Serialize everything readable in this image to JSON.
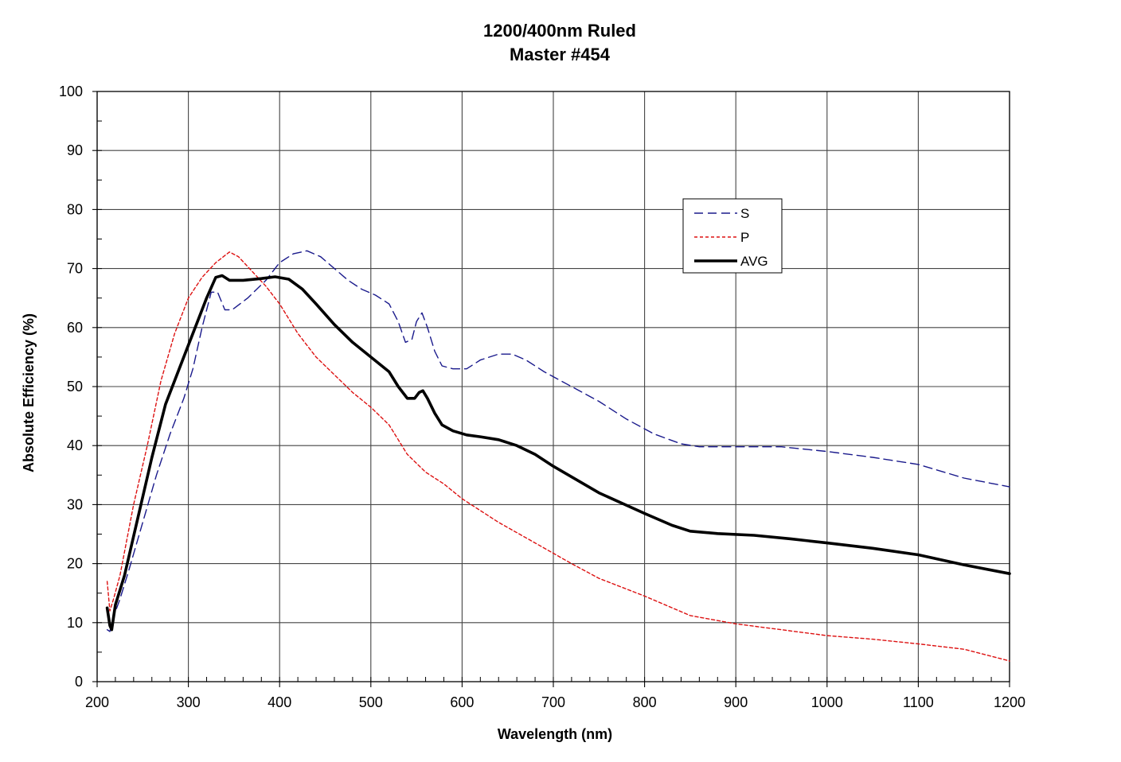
{
  "chart_data": {
    "type": "line",
    "title": [
      "1200/400nm Ruled",
      "Master #454"
    ],
    "xlabel": "Wavelength (nm)",
    "ylabel": "Absolute Efficiency (%)",
    "xlim": [
      200,
      1200
    ],
    "ylim": [
      0,
      100
    ],
    "xticks": [
      "200",
      "300",
      "400",
      "500",
      "600",
      "700",
      "800",
      "900",
      "1000",
      "1100",
      "1200"
    ],
    "yticks": [
      "0",
      "10",
      "20",
      "30",
      "40",
      "50",
      "60",
      "70",
      "80",
      "90",
      "100"
    ],
    "grid": true,
    "legend_position": "upper-right",
    "series": [
      {
        "name": "S",
        "color": "#1a1a8c",
        "style": "dashed",
        "points": [
          [
            211,
            8.8
          ],
          [
            214,
            8.5
          ],
          [
            218,
            11
          ],
          [
            225,
            14
          ],
          [
            235,
            19
          ],
          [
            250,
            27
          ],
          [
            265,
            35
          ],
          [
            280,
            42
          ],
          [
            295,
            48
          ],
          [
            305,
            53
          ],
          [
            315,
            60
          ],
          [
            325,
            66
          ],
          [
            332,
            66
          ],
          [
            340,
            63
          ],
          [
            348,
            63
          ],
          [
            365,
            65
          ],
          [
            385,
            68
          ],
          [
            400,
            71
          ],
          [
            415,
            72.5
          ],
          [
            430,
            73
          ],
          [
            445,
            72
          ],
          [
            460,
            70
          ],
          [
            475,
            68
          ],
          [
            490,
            66.5
          ],
          [
            505,
            65.5
          ],
          [
            520,
            64
          ],
          [
            530,
            61
          ],
          [
            538,
            57.5
          ],
          [
            545,
            58
          ],
          [
            550,
            61
          ],
          [
            556,
            62.5
          ],
          [
            562,
            60
          ],
          [
            570,
            56
          ],
          [
            578,
            53.5
          ],
          [
            590,
            53
          ],
          [
            605,
            53
          ],
          [
            620,
            54.5
          ],
          [
            640,
            55.5
          ],
          [
            655,
            55.5
          ],
          [
            670,
            54.5
          ],
          [
            690,
            52.5
          ],
          [
            720,
            50
          ],
          [
            750,
            47.5
          ],
          [
            780,
            44.5
          ],
          [
            810,
            42
          ],
          [
            840,
            40.3
          ],
          [
            860,
            39.8
          ],
          [
            900,
            39.8
          ],
          [
            950,
            39.8
          ],
          [
            1000,
            39
          ],
          [
            1050,
            38
          ],
          [
            1100,
            36.8
          ],
          [
            1150,
            34.5
          ],
          [
            1200,
            33
          ]
        ]
      },
      {
        "name": "P",
        "color": "#dd1111",
        "style": "dotted",
        "points": [
          [
            211,
            17
          ],
          [
            214,
            12
          ],
          [
            218,
            14
          ],
          [
            225,
            18
          ],
          [
            240,
            30
          ],
          [
            255,
            40
          ],
          [
            270,
            51
          ],
          [
            285,
            59
          ],
          [
            300,
            65
          ],
          [
            315,
            68.5
          ],
          [
            330,
            71
          ],
          [
            345,
            72.8
          ],
          [
            355,
            72
          ],
          [
            370,
            69.5
          ],
          [
            385,
            67
          ],
          [
            400,
            64
          ],
          [
            420,
            59
          ],
          [
            440,
            55
          ],
          [
            460,
            52
          ],
          [
            480,
            49
          ],
          [
            500,
            46.5
          ],
          [
            520,
            43.5
          ],
          [
            540,
            38.5
          ],
          [
            560,
            35.5
          ],
          [
            580,
            33.5
          ],
          [
            600,
            31
          ],
          [
            640,
            27
          ],
          [
            680,
            23.5
          ],
          [
            720,
            20
          ],
          [
            750,
            17.5
          ],
          [
            800,
            14.5
          ],
          [
            850,
            11.2
          ],
          [
            900,
            9.8
          ],
          [
            950,
            8.8
          ],
          [
            1000,
            7.8
          ],
          [
            1050,
            7.2
          ],
          [
            1100,
            6.4
          ],
          [
            1150,
            5.5
          ],
          [
            1200,
            3.5
          ]
        ]
      },
      {
        "name": "AVG",
        "color": "#000000",
        "style": "solid",
        "points": [
          [
            211,
            12.5
          ],
          [
            214,
            9.5
          ],
          [
            216,
            8.8
          ],
          [
            220,
            13
          ],
          [
            230,
            18
          ],
          [
            245,
            28
          ],
          [
            260,
            38
          ],
          [
            275,
            47
          ],
          [
            290,
            53
          ],
          [
            305,
            59
          ],
          [
            320,
            65
          ],
          [
            330,
            68.5
          ],
          [
            337,
            68.8
          ],
          [
            345,
            68
          ],
          [
            360,
            68
          ],
          [
            380,
            68.3
          ],
          [
            395,
            68.6
          ],
          [
            410,
            68.2
          ],
          [
            425,
            66.5
          ],
          [
            440,
            64
          ],
          [
            460,
            60.5
          ],
          [
            480,
            57.5
          ],
          [
            500,
            55
          ],
          [
            520,
            52.5
          ],
          [
            530,
            50
          ],
          [
            540,
            48
          ],
          [
            548,
            48
          ],
          [
            553,
            49
          ],
          [
            557,
            49.3
          ],
          [
            562,
            48
          ],
          [
            570,
            45.5
          ],
          [
            578,
            43.5
          ],
          [
            590,
            42.5
          ],
          [
            605,
            41.8
          ],
          [
            620,
            41.5
          ],
          [
            640,
            41
          ],
          [
            660,
            40
          ],
          [
            680,
            38.5
          ],
          [
            700,
            36.5
          ],
          [
            750,
            32
          ],
          [
            800,
            28.5
          ],
          [
            830,
            26.5
          ],
          [
            850,
            25.5
          ],
          [
            880,
            25.1
          ],
          [
            920,
            24.8
          ],
          [
            960,
            24.2
          ],
          [
            1000,
            23.5
          ],
          [
            1050,
            22.6
          ],
          [
            1100,
            21.5
          ],
          [
            1150,
            19.8
          ],
          [
            1200,
            18.3
          ]
        ]
      }
    ]
  }
}
